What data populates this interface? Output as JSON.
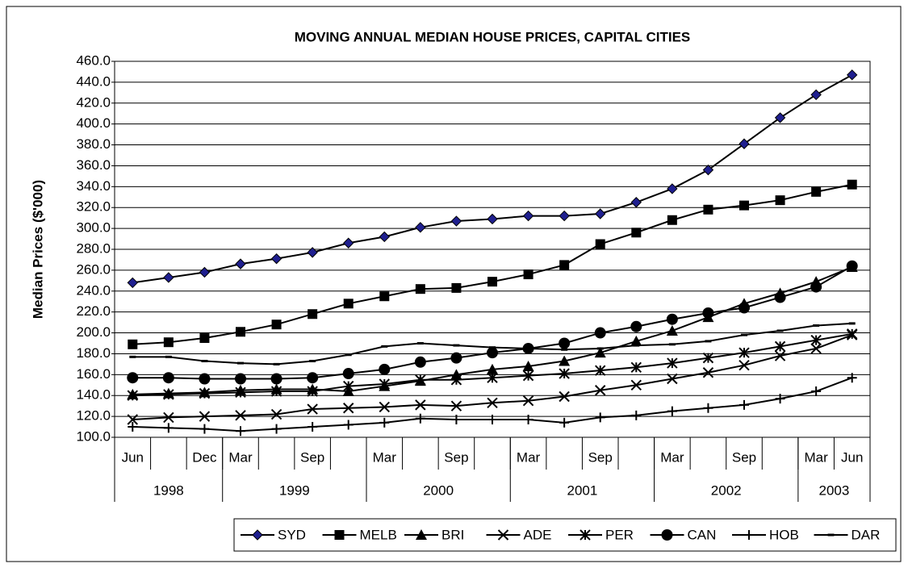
{
  "chart_data": {
    "type": "line",
    "title": "MOVING ANNUAL MEDIAN HOUSE PRICES, CAPITAL CITIES",
    "y_label": "Median Prices ($'000)",
    "categories": [
      "Jun",
      null,
      "Dec",
      "Mar",
      null,
      "Sep",
      null,
      "Mar",
      null,
      "Sep",
      null,
      "Mar",
      null,
      "Sep",
      null,
      "Mar",
      null,
      "Sep",
      null,
      "Mar",
      "Jun"
    ],
    "years": [
      null,
      null,
      "1998",
      "1999",
      null,
      null,
      null,
      "2000",
      null,
      null,
      null,
      "2001",
      null,
      null,
      null,
      "2002",
      null,
      null,
      null,
      "2003",
      null
    ],
    "ylim": [
      100,
      460
    ],
    "yticks": [
      {
        "value": 100,
        "label": "100.0"
      },
      {
        "value": 120,
        "label": "120.0"
      },
      {
        "value": 140,
        "label": "140.0"
      },
      {
        "value": 160,
        "label": "160.0"
      },
      {
        "value": 180,
        "label": "180.0"
      },
      {
        "value": 200,
        "label": "200.0"
      },
      {
        "value": 220,
        "label": "220.0"
      },
      {
        "value": 240,
        "label": "240.0"
      },
      {
        "value": 260,
        "label": "260.0"
      },
      {
        "value": 280,
        "label": "280.0"
      },
      {
        "value": 300,
        "label": "300.0"
      },
      {
        "value": 320,
        "label": "320.0"
      },
      {
        "value": 340,
        "label": "340.0"
      },
      {
        "value": 360,
        "label": "360.0"
      },
      {
        "value": 380,
        "label": "380.0"
      },
      {
        "value": 400,
        "label": "400.0"
      },
      {
        "value": 420,
        "label": "420.0"
      },
      {
        "value": 440,
        "label": "440.0"
      },
      {
        "value": 460,
        "label": "460.0"
      }
    ],
    "grid": true,
    "legend": "bottom",
    "series": [
      {
        "name": "SYD",
        "color": "#000000",
        "marker": "diamond",
        "values": [
          248,
          253,
          258,
          266,
          271,
          277,
          286,
          292,
          301,
          307,
          309,
          312,
          312,
          314,
          325,
          338,
          356,
          381,
          406,
          428,
          447
        ]
      },
      {
        "name": "MELB",
        "color": "#000000",
        "marker": "square",
        "values": [
          189,
          191,
          195,
          201,
          208,
          218,
          228,
          235,
          242,
          243,
          249,
          256,
          265,
          285,
          296,
          308,
          318,
          322,
          327,
          335,
          342
        ]
      },
      {
        "name": "BRI",
        "color": "#000000",
        "marker": "triangle",
        "values": [
          141,
          142,
          143,
          145,
          146,
          146,
          144,
          149,
          154,
          160,
          165,
          168,
          173,
          181,
          192,
          202,
          215,
          228,
          238,
          249,
          263
        ]
      },
      {
        "name": "ADE",
        "color": "#000000",
        "marker": "x",
        "values": [
          117,
          119,
          120,
          121,
          122,
          127,
          128,
          129,
          131,
          130,
          133,
          135,
          139,
          145,
          150,
          156,
          162,
          169,
          178,
          185,
          198
        ]
      },
      {
        "name": "PER",
        "color": "#000000",
        "marker": "star",
        "values": [
          140,
          141,
          142,
          143,
          144,
          144,
          149,
          151,
          155,
          155,
          157,
          159,
          161,
          164,
          167,
          171,
          176,
          181,
          187,
          193,
          199
        ]
      },
      {
        "name": "CAN",
        "color": "#000000",
        "marker": "circle",
        "values": [
          157,
          157,
          156,
          156,
          156,
          157,
          161,
          165,
          172,
          176,
          181,
          185,
          190,
          200,
          206,
          213,
          219,
          224,
          234,
          244,
          264
        ]
      },
      {
        "name": "HOB",
        "color": "#000000",
        "marker": "plus",
        "values": [
          110,
          109,
          108,
          106,
          108,
          110,
          112,
          114,
          118,
          117,
          117,
          117,
          114,
          119,
          121,
          125,
          128,
          131,
          137,
          144,
          157
        ]
      },
      {
        "name": "DAR",
        "color": "#000000",
        "marker": "dash",
        "values": [
          177,
          177,
          173,
          171,
          170,
          173,
          179,
          187,
          190,
          188,
          186,
          185,
          184,
          185,
          188,
          189,
          192,
          198,
          202,
          207,
          209
        ]
      }
    ]
  }
}
